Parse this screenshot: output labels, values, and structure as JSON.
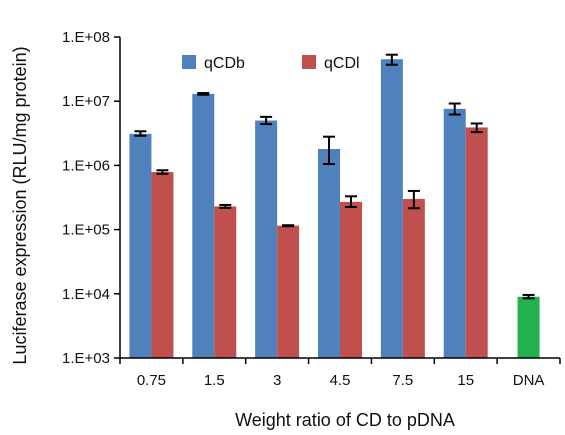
{
  "chart_data": {
    "type": "bar",
    "xlabel": "Weight ratio of CD to pDNA",
    "ylabel": "Luciferase expression (RLU/mg protein)",
    "y_scale": "log",
    "ylim": [
      1000,
      100000000
    ],
    "y_ticks": [
      1000,
      10000,
      100000,
      1000000,
      10000000,
      100000000
    ],
    "y_tick_labels": [
      "1.E+03",
      "1.E+04",
      "1.E+05",
      "1.E+06",
      "1.E+07",
      "1.E+08"
    ],
    "categories": [
      "0.75",
      "1.5",
      "3",
      "4.5",
      "7.5",
      "15",
      "DNA"
    ],
    "legend_position": "top-left",
    "grid": false,
    "series": [
      {
        "name": "qCDb",
        "color": "#4F81BD",
        "values": [
          3100000,
          13000000,
          5000000,
          1800000,
          45000000,
          7600000,
          null
        ],
        "error_low": [
          2900000,
          12600000,
          4400000,
          1050000,
          37000000,
          6200000,
          null
        ],
        "error_high": [
          3400000,
          13400000,
          5700000,
          2800000,
          53000000,
          9200000,
          null
        ]
      },
      {
        "name": "qCDl",
        "color": "#C0504D",
        "values": [
          790000,
          230000,
          115000,
          270000,
          300000,
          3900000,
          null
        ],
        "error_low": [
          740000,
          218000,
          113000,
          225000,
          215000,
          3300000,
          null
        ],
        "error_high": [
          840000,
          242000,
          117000,
          330000,
          400000,
          4500000,
          null
        ]
      },
      {
        "name": "",
        "color": "#22B14C",
        "values": [
          null,
          null,
          null,
          null,
          null,
          null,
          9000
        ],
        "error_low": [
          null,
          null,
          null,
          null,
          null,
          null,
          8500
        ],
        "error_high": [
          null,
          null,
          null,
          null,
          null,
          null,
          9600
        ]
      }
    ]
  }
}
